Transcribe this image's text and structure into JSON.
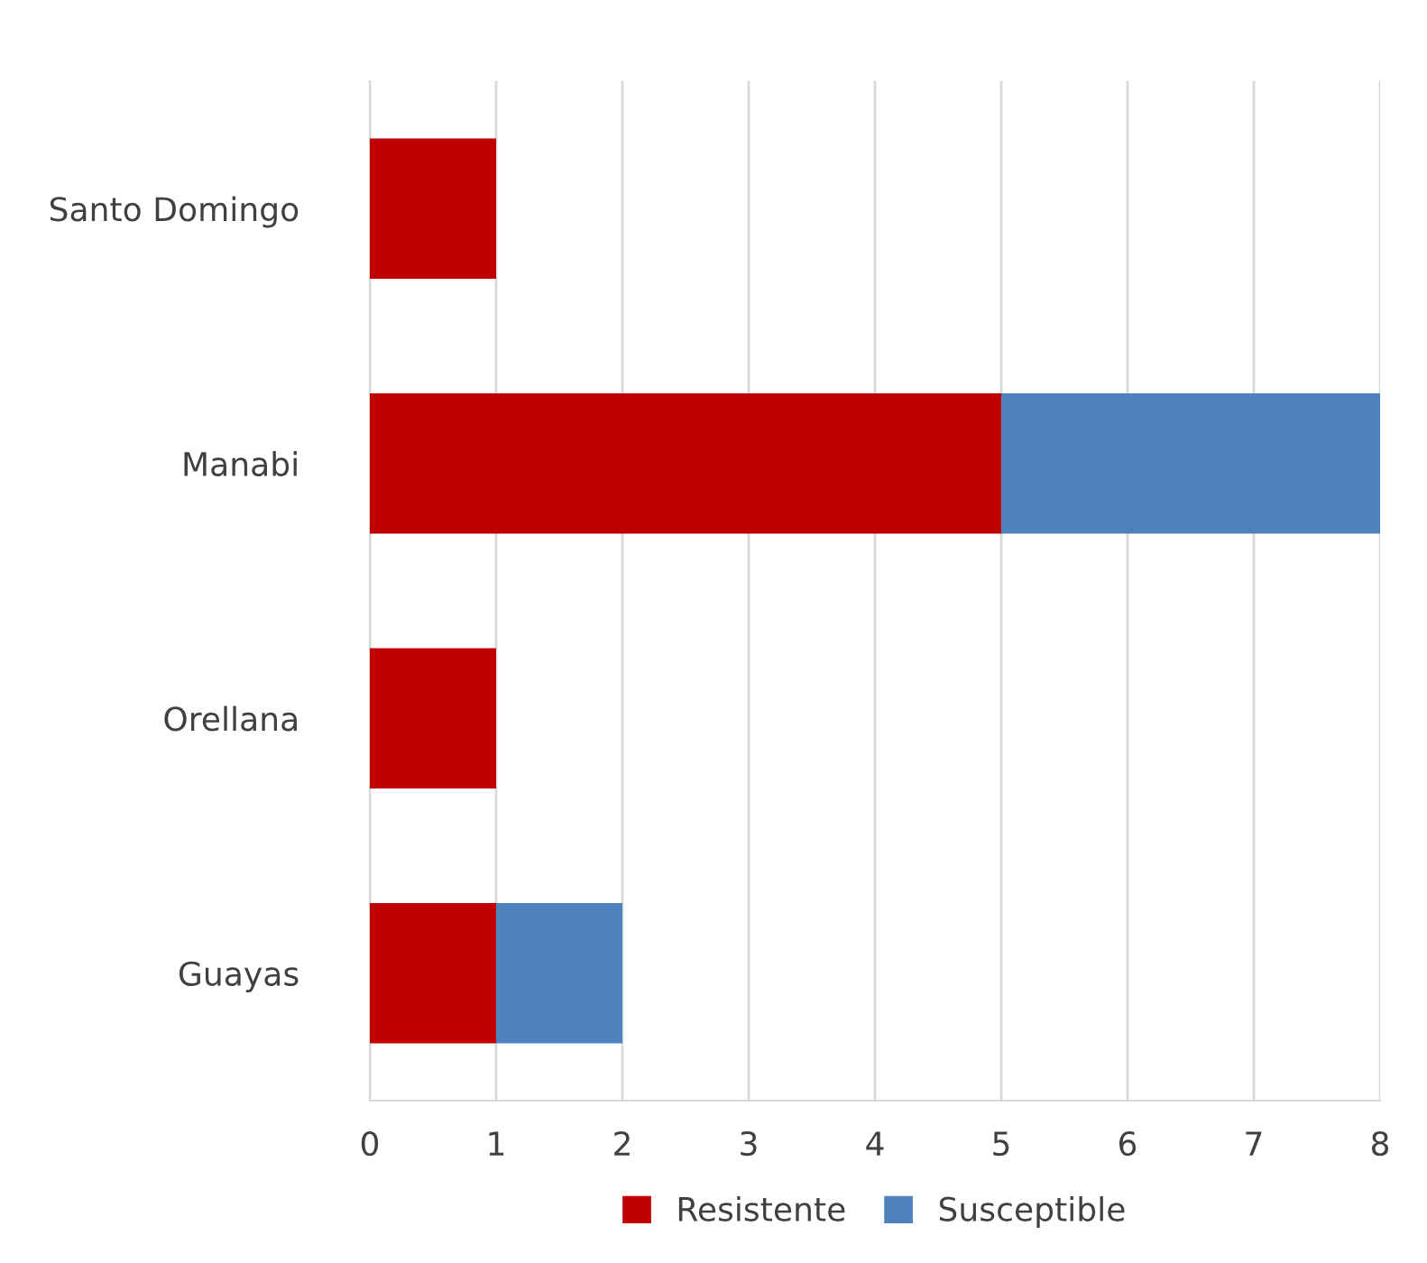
{
  "chart_data": {
    "type": "bar",
    "orientation": "horizontal",
    "stacked": true,
    "categories": [
      "Santo Domingo",
      "Manabi",
      "Orellana",
      "Guayas"
    ],
    "series": [
      {
        "name": "Resistente",
        "color": "#c00000",
        "values": [
          1,
          5,
          1,
          1
        ]
      },
      {
        "name": "Susceptible",
        "color": "#4f81bd",
        "values": [
          0,
          3,
          0,
          1
        ]
      }
    ],
    "xlim": [
      0,
      8
    ],
    "xticks": [
      0,
      1,
      2,
      3,
      4,
      5,
      6,
      7,
      8
    ],
    "grid": "x",
    "legend": "bottom"
  }
}
